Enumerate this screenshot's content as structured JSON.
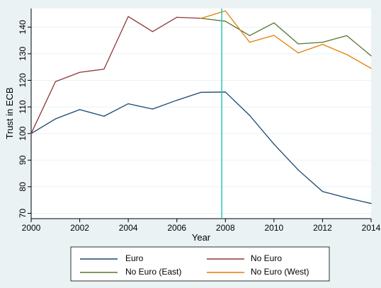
{
  "chart_data": {
    "type": "line",
    "xlabel": "Year",
    "ylabel": "Trust in ECB",
    "xlim": [
      2000,
      2014
    ],
    "ylim": [
      68,
      147
    ],
    "xticks": [
      2000,
      2002,
      2004,
      2006,
      2008,
      2010,
      2012,
      2014
    ],
    "yticks": [
      70,
      80,
      90,
      100,
      110,
      120,
      130,
      140
    ],
    "grid": "horizontal",
    "reference_line": {
      "x": 2007.85,
      "color": "#2ec4b6"
    },
    "legend_placement": "bottom",
    "series": [
      {
        "name": "Euro",
        "color": "#1a476f",
        "x": [
          2000,
          2001,
          2002,
          2003,
          2004,
          2005,
          2006,
          2007,
          2008,
          2009,
          2010,
          2011,
          2012,
          2013,
          2014
        ],
        "values": [
          100,
          105.5,
          109,
          106.5,
          111.2,
          109.2,
          112.5,
          115.5,
          115.6,
          106.8,
          96,
          86.3,
          78.2,
          75.8,
          73.7
        ]
      },
      {
        "name": "No Euro",
        "color": "#90353b",
        "x": [
          2000,
          2001,
          2002,
          2003,
          2004,
          2005,
          2006,
          2007
        ],
        "values": [
          100,
          119.5,
          123,
          124.2,
          144,
          138.3,
          143.7,
          143.3
        ]
      },
      {
        "name": "No Euro (East)",
        "color": "#55752f",
        "x": [
          2007,
          2008,
          2009,
          2010,
          2011,
          2012,
          2013,
          2014
        ],
        "values": [
          143.3,
          142.2,
          136.8,
          141.6,
          133.7,
          134.3,
          136.8,
          129.2
        ]
      },
      {
        "name": "No Euro (West)",
        "color": "#e37e00",
        "x": [
          2007,
          2008,
          2009,
          2010,
          2011,
          2012,
          2013,
          2014
        ],
        "values": [
          143.3,
          146.1,
          134.3,
          136.9,
          130.3,
          133.5,
          129.7,
          124.5
        ]
      }
    ]
  }
}
